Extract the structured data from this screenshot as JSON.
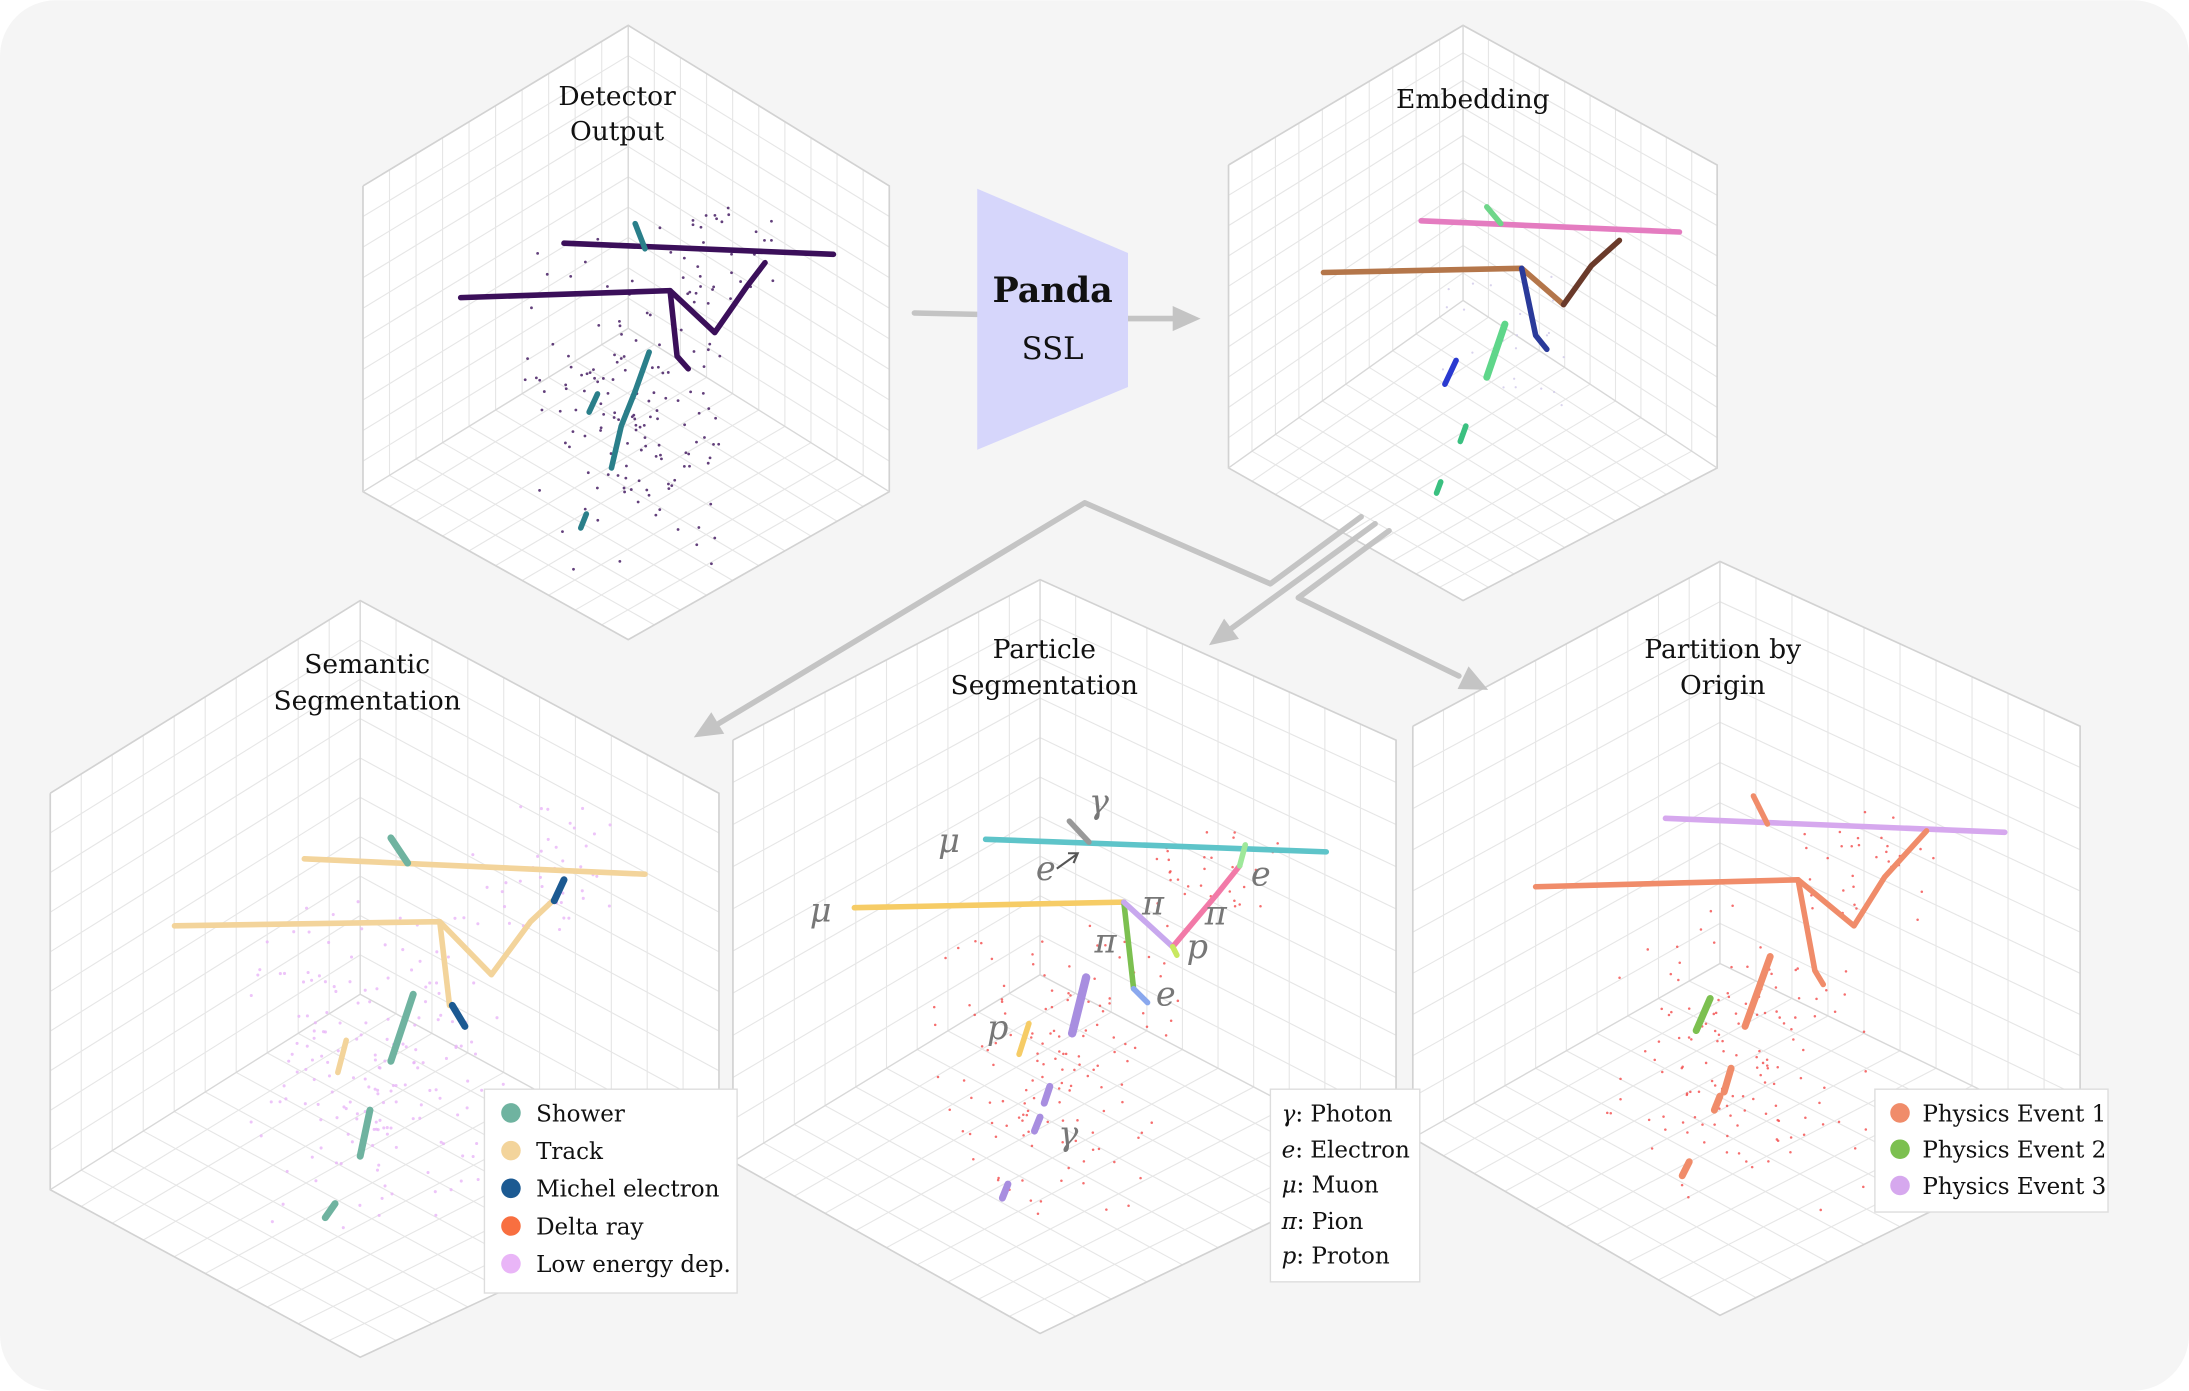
{
  "panels": {
    "detector": {
      "title_lines": [
        "Detector",
        "Output"
      ]
    },
    "embedding": {
      "title_lines": [
        "Embedding"
      ]
    },
    "semantic": {
      "title_lines": [
        "Semantic",
        "Segmentation"
      ]
    },
    "particle": {
      "title_lines": [
        "Particle",
        "Segmentation"
      ]
    },
    "partition": {
      "title_lines": [
        "Partition by",
        "Origin"
      ]
    }
  },
  "model": {
    "name": "Panda",
    "subtitle": "SSL",
    "color": "#d6d6fb"
  },
  "semantic_legend": [
    {
      "label": "Shower",
      "color": "#6fb3a0"
    },
    {
      "label": "Track",
      "color": "#f3d49b"
    },
    {
      "label": "Michel electron",
      "color": "#1c5a92"
    },
    {
      "label": "Delta ray",
      "color": "#f86f40"
    },
    {
      "label": "Low energy dep.",
      "color": "#e9b5f7"
    }
  ],
  "particle_legend": [
    {
      "symbol": "γ",
      "label": ": Photon"
    },
    {
      "symbol": "e",
      "label": ":  Electron"
    },
    {
      "symbol": "μ",
      "label": ":  Muon"
    },
    {
      "symbol": "π",
      "label": ":  Pion"
    },
    {
      "symbol": "p",
      "label": ":  Proton"
    }
  ],
  "partition_legend": [
    {
      "label": "Physics Event 1",
      "color": "#f08c6a"
    },
    {
      "label": "Physics Event 2",
      "color": "#7cc050"
    },
    {
      "label": "Physics Event 3",
      "color": "#d6a8ee"
    }
  ],
  "particle_annotations": {
    "gamma": "γ",
    "electron": "e",
    "muon": "μ",
    "pion": "π",
    "proton": "p"
  },
  "colors": {
    "background": "#f5f5f5",
    "arrow": "#c4c4c4",
    "detector_hits": "#3b0f5a",
    "delta_points": "#f24a4a"
  }
}
